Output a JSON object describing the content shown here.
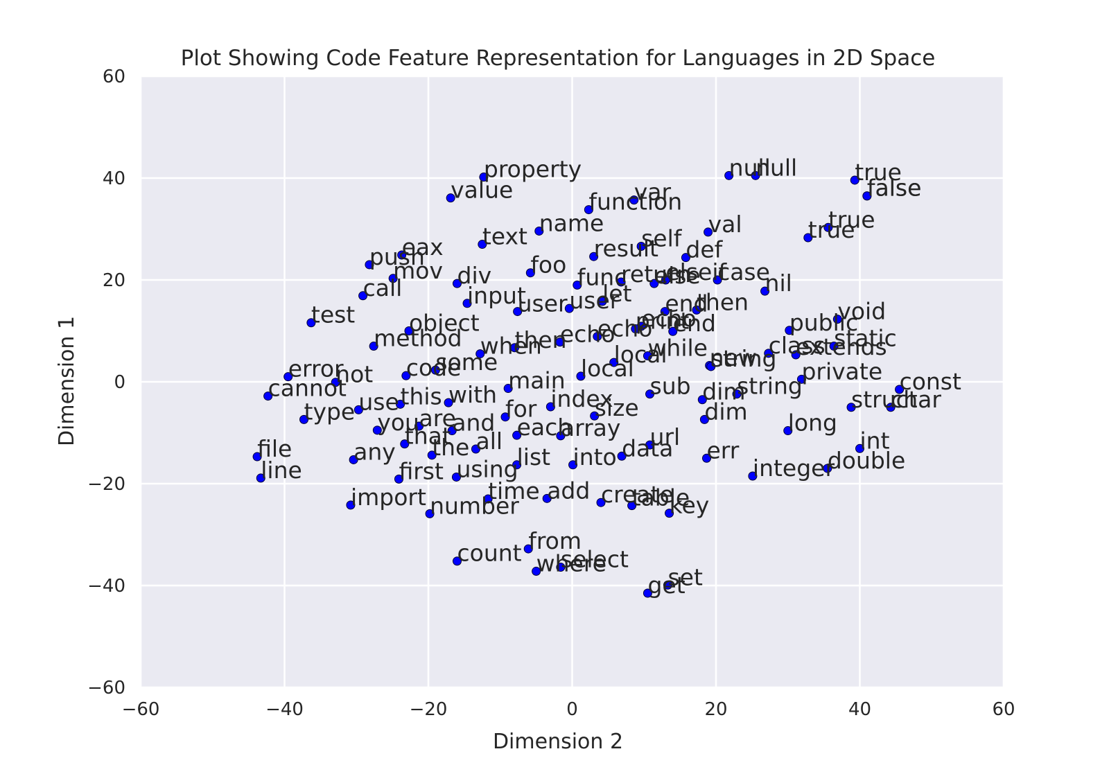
{
  "chart_data": {
    "type": "scatter",
    "title": "Plot Showing Code Feature Representation for Languages in 2D Space",
    "xlabel": "Dimension 2",
    "ylabel": "Dimension 1",
    "xlim": [
      -60,
      60
    ],
    "ylim": [
      -60,
      60
    ],
    "xticks": [
      -60,
      -40,
      -20,
      0,
      20,
      40,
      60
    ],
    "yticks": [
      -60,
      -40,
      -20,
      0,
      20,
      40,
      60
    ],
    "grid": true,
    "marker_color": "#0000ff",
    "background_color": "#eaeaf2",
    "points": [
      {
        "x": 21.8,
        "y": 40.5,
        "label": "null"
      },
      {
        "x": 25.5,
        "y": 40.5,
        "label": "null"
      },
      {
        "x": 39.3,
        "y": 39.6,
        "label": "true"
      },
      {
        "x": 41.0,
        "y": 36.5,
        "label": "false"
      },
      {
        "x": 41.0,
        "y": 36.5,
        "label": "false"
      },
      {
        "x": 32.8,
        "y": 28.3,
        "label": "true"
      },
      {
        "x": 35.6,
        "y": 30.3,
        "label": "true"
      },
      {
        "x": -12.3,
        "y": 40.2,
        "label": "property"
      },
      {
        "x": -16.9,
        "y": 36.1,
        "label": "value"
      },
      {
        "x": 8.6,
        "y": 35.7,
        "label": "var"
      },
      {
        "x": 2.3,
        "y": 33.8,
        "label": "function"
      },
      {
        "x": -4.6,
        "y": 29.6,
        "label": "name"
      },
      {
        "x": 18.9,
        "y": 29.4,
        "label": "val"
      },
      {
        "x": -12.5,
        "y": 27.0,
        "label": "text"
      },
      {
        "x": -23.7,
        "y": 24.9,
        "label": "eax"
      },
      {
        "x": -28.2,
        "y": 23.0,
        "label": "push"
      },
      {
        "x": 9.6,
        "y": 26.6,
        "label": "self"
      },
      {
        "x": 3.0,
        "y": 24.6,
        "label": "result"
      },
      {
        "x": 15.8,
        "y": 24.4,
        "label": "def"
      },
      {
        "x": -5.8,
        "y": 21.4,
        "label": "foo"
      },
      {
        "x": -24.9,
        "y": 20.3,
        "label": "mov"
      },
      {
        "x": -16.0,
        "y": 19.3,
        "label": "div"
      },
      {
        "x": 0.7,
        "y": 19.0,
        "label": "func"
      },
      {
        "x": 6.8,
        "y": 19.6,
        "label": "return"
      },
      {
        "x": 11.4,
        "y": 19.3,
        "label": "else"
      },
      {
        "x": 13.0,
        "y": 20.0,
        "label": "elseif"
      },
      {
        "x": 20.2,
        "y": 20.0,
        "label": "case"
      },
      {
        "x": 26.8,
        "y": 17.8,
        "label": "nil"
      },
      {
        "x": -29.1,
        "y": 16.9,
        "label": "call"
      },
      {
        "x": -14.6,
        "y": 15.4,
        "label": "input"
      },
      {
        "x": 4.2,
        "y": 15.8,
        "label": "let"
      },
      {
        "x": -7.6,
        "y": 13.8,
        "label": "user"
      },
      {
        "x": -0.4,
        "y": 14.4,
        "label": "user"
      },
      {
        "x": 17.3,
        "y": 14.1,
        "label": "then"
      },
      {
        "x": 12.9,
        "y": 13.8,
        "label": "end"
      },
      {
        "x": -36.3,
        "y": 11.6,
        "label": "test"
      },
      {
        "x": -22.7,
        "y": 10.0,
        "label": "object"
      },
      {
        "x": 36.9,
        "y": 12.3,
        "label": "void"
      },
      {
        "x": 30.2,
        "y": 10.1,
        "label": "public"
      },
      {
        "x": 9.6,
        "y": 10.9,
        "label": "echo"
      },
      {
        "x": 8.8,
        "y": 10.4,
        "label": "print"
      },
      {
        "x": 3.5,
        "y": 8.9,
        "label": "echo"
      },
      {
        "x": 14.0,
        "y": 9.9,
        "label": "end"
      },
      {
        "x": -27.6,
        "y": 7.0,
        "label": "method"
      },
      {
        "x": -8.0,
        "y": 6.7,
        "label": "then"
      },
      {
        "x": -1.7,
        "y": 7.8,
        "label": "echo"
      },
      {
        "x": -12.8,
        "y": 5.5,
        "label": "when"
      },
      {
        "x": 36.4,
        "y": 7.0,
        "label": "static"
      },
      {
        "x": 27.3,
        "y": 5.6,
        "label": "class"
      },
      {
        "x": 31.1,
        "y": 5.3,
        "label": "extends"
      },
      {
        "x": 10.5,
        "y": 5.1,
        "label": "while"
      },
      {
        "x": -39.5,
        "y": 1.0,
        "label": "error"
      },
      {
        "x": -32.9,
        "y": -0.1,
        "label": "not"
      },
      {
        "x": -23.1,
        "y": 1.2,
        "label": "code"
      },
      {
        "x": -19.0,
        "y": 2.3,
        "label": "some"
      },
      {
        "x": 5.8,
        "y": 3.8,
        "label": "local"
      },
      {
        "x": 1.2,
        "y": 1.1,
        "label": "local"
      },
      {
        "x": 19.1,
        "y": 3.2,
        "label": "new"
      },
      {
        "x": 19.3,
        "y": 3.0,
        "label": "string"
      },
      {
        "x": 31.9,
        "y": 0.5,
        "label": "private"
      },
      {
        "x": 45.5,
        "y": -1.5,
        "label": "const"
      },
      {
        "x": -42.3,
        "y": -2.8,
        "label": "cannot"
      },
      {
        "x": -8.9,
        "y": -1.3,
        "label": "main"
      },
      {
        "x": 10.8,
        "y": -2.4,
        "label": "sub"
      },
      {
        "x": 22.9,
        "y": -2.4,
        "label": "string"
      },
      {
        "x": -23.9,
        "y": -4.4,
        "label": "this"
      },
      {
        "x": -29.7,
        "y": -5.5,
        "label": "use"
      },
      {
        "x": -17.2,
        "y": -4.1,
        "label": "with"
      },
      {
        "x": -3.0,
        "y": -4.9,
        "label": "index"
      },
      {
        "x": 18.1,
        "y": -3.5,
        "label": "dim"
      },
      {
        "x": 38.8,
        "y": -5.0,
        "label": "struct"
      },
      {
        "x": 44.3,
        "y": -5.0,
        "label": "char"
      },
      {
        "x": -37.3,
        "y": -7.4,
        "label": "type"
      },
      {
        "x": -9.3,
        "y": -6.9,
        "label": "for"
      },
      {
        "x": 3.1,
        "y": -6.7,
        "label": "size"
      },
      {
        "x": 18.4,
        "y": -7.4,
        "label": "dim"
      },
      {
        "x": -21.3,
        "y": -8.7,
        "label": "are"
      },
      {
        "x": -27.1,
        "y": -9.5,
        "label": "you"
      },
      {
        "x": -16.7,
        "y": -9.6,
        "label": "and"
      },
      {
        "x": -7.7,
        "y": -10.5,
        "label": "each"
      },
      {
        "x": -1.6,
        "y": -10.6,
        "label": "array"
      },
      {
        "x": 30.0,
        "y": -9.6,
        "label": "long"
      },
      {
        "x": -23.3,
        "y": -12.2,
        "label": "that"
      },
      {
        "x": -13.4,
        "y": -13.2,
        "label": "all"
      },
      {
        "x": -19.5,
        "y": -14.4,
        "label": "the"
      },
      {
        "x": 10.8,
        "y": -12.4,
        "label": "url"
      },
      {
        "x": 40.0,
        "y": -13.1,
        "label": "int"
      },
      {
        "x": -43.8,
        "y": -14.7,
        "label": "file"
      },
      {
        "x": -30.4,
        "y": -15.3,
        "label": "any"
      },
      {
        "x": 6.9,
        "y": -14.6,
        "label": "data"
      },
      {
        "x": 18.7,
        "y": -15.0,
        "label": "err"
      },
      {
        "x": -7.7,
        "y": -16.3,
        "label": "list"
      },
      {
        "x": 0.1,
        "y": -16.3,
        "label": "into"
      },
      {
        "x": 35.5,
        "y": -17.0,
        "label": "double"
      },
      {
        "x": -43.3,
        "y": -18.9,
        "label": "line"
      },
      {
        "x": -24.1,
        "y": -19.1,
        "label": "first"
      },
      {
        "x": -16.1,
        "y": -18.7,
        "label": "using"
      },
      {
        "x": 25.1,
        "y": -18.5,
        "label": "integer"
      },
      {
        "x": -11.7,
        "y": -23.0,
        "label": "time"
      },
      {
        "x": -3.5,
        "y": -22.9,
        "label": "add"
      },
      {
        "x": 4.0,
        "y": -23.7,
        "label": "create"
      },
      {
        "x": 8.3,
        "y": -24.3,
        "label": "table"
      },
      {
        "x": -30.8,
        "y": -24.2,
        "label": "import"
      },
      {
        "x": -19.8,
        "y": -25.9,
        "label": "number"
      },
      {
        "x": 13.5,
        "y": -25.8,
        "label": "key"
      },
      {
        "x": -6.1,
        "y": -32.8,
        "label": "from"
      },
      {
        "x": -16.0,
        "y": -35.2,
        "label": "count"
      },
      {
        "x": -1.6,
        "y": -36.4,
        "label": "select"
      },
      {
        "x": -5.0,
        "y": -37.2,
        "label": "where"
      },
      {
        "x": 13.3,
        "y": -39.9,
        "label": "set"
      },
      {
        "x": 10.5,
        "y": -41.5,
        "label": "get"
      }
    ]
  }
}
